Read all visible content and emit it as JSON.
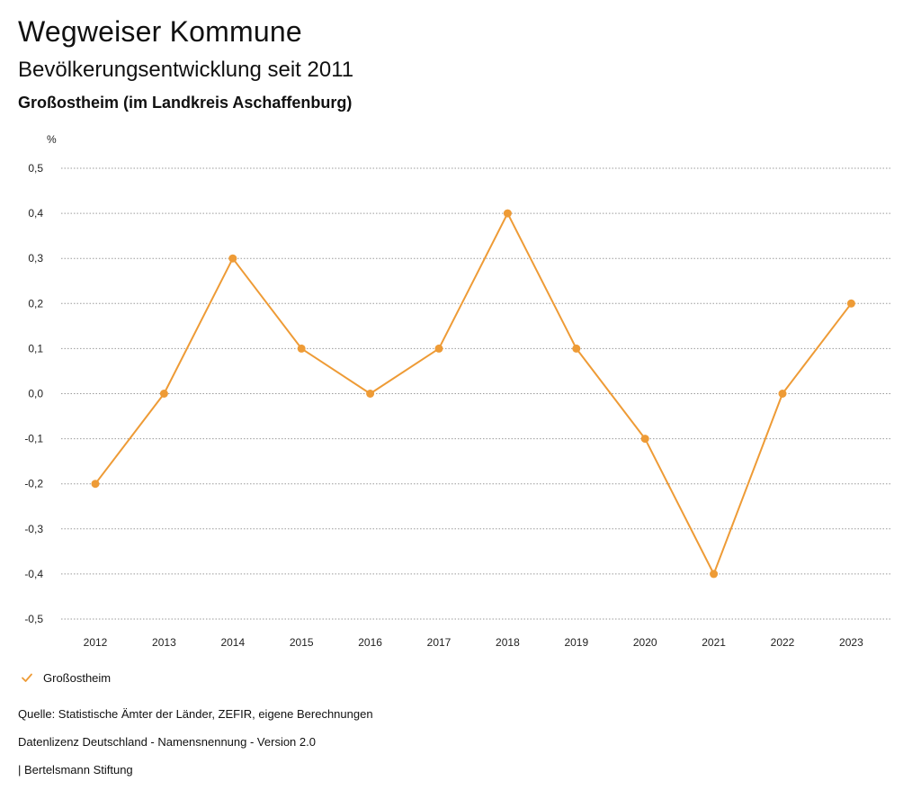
{
  "header": {
    "title": "Wegweiser Kommune",
    "subtitle": "Bevölkerungsentwicklung seit 2011",
    "region": "Großostheim (im Landkreis Aschaffenburg)"
  },
  "chart_data": {
    "type": "line",
    "title": "Bevölkerungsentwicklung seit 2011",
    "ylabel": "%",
    "xlabel": "",
    "ylim": [
      -0.5,
      0.5
    ],
    "yticks": [
      "0,5",
      "0,4",
      "0,3",
      "0,2",
      "0,1",
      "0,0",
      "-0,1",
      "-0,2",
      "-0,3",
      "-0,4",
      "-0,5"
    ],
    "ytick_values": [
      0.5,
      0.4,
      0.3,
      0.2,
      0.1,
      0.0,
      -0.1,
      -0.2,
      -0.3,
      -0.4,
      -0.5
    ],
    "categories": [
      "2012",
      "2013",
      "2014",
      "2015",
      "2016",
      "2017",
      "2018",
      "2019",
      "2020",
      "2021",
      "2022",
      "2023"
    ],
    "series": [
      {
        "name": "Großostheim",
        "color": "#EE9B36",
        "values": [
          -0.2,
          0.0,
          0.3,
          0.1,
          0.0,
          0.1,
          0.4,
          0.1,
          -0.1,
          -0.4,
          0.0,
          0.2
        ]
      }
    ],
    "grid": "dotted horizontal",
    "legend_position": "bottom-left"
  },
  "legend": {
    "label": "Großostheim"
  },
  "footer": {
    "source": "Quelle: Statistische Ämter der Länder, ZEFIR, eigene Berechnungen",
    "license": "Datenlizenz Deutschland - Namensnennung - Version 2.0",
    "publisher": "| Bertelsmann Stiftung"
  }
}
